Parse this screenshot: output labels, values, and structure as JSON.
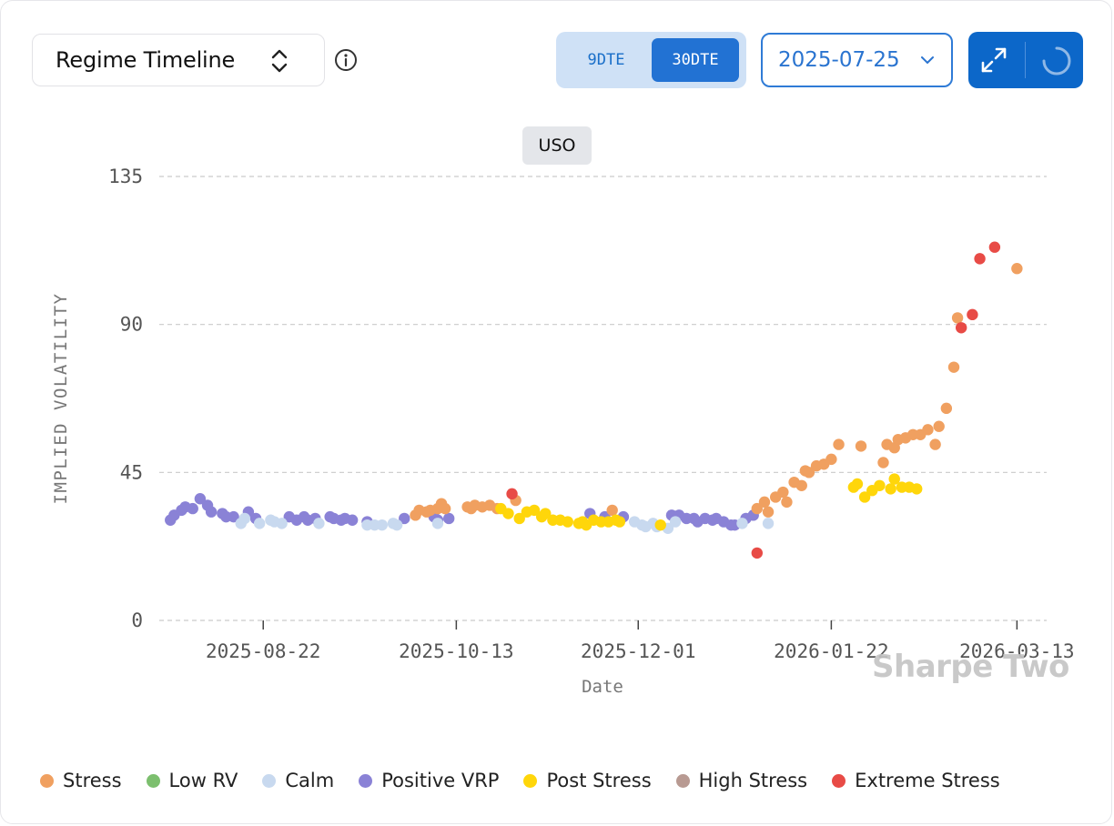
{
  "header": {
    "title": "Regime Timeline",
    "dte_options": [
      "9DTE",
      "30DTE"
    ],
    "selected_dte": "30DTE",
    "date_value": "2025-07-25",
    "icons": [
      "updown-chevron-icon",
      "info-icon",
      "chevron-down-icon",
      "expand-icon",
      "loading-spinner-icon"
    ]
  },
  "watermark": "Sharpe Two",
  "colors": {
    "Stress": "#f0a060",
    "Low RV": "#7cbf6e",
    "Calm": "#c8d9ef",
    "Positive VRP": "#8a82d6",
    "Post Stress": "#ffd60a",
    "High Stress": "#b89a92",
    "Extreme Stress": "#e84b46"
  },
  "chart_data": {
    "type": "scatter",
    "title": "USO",
    "xlabel": "Date",
    "ylabel": "IMPLIED VOLATILITY",
    "ylim": [
      0,
      135
    ],
    "yticks": [
      0,
      45,
      90,
      135
    ],
    "xlim": [
      "2025-07-25",
      "2026-03-21"
    ],
    "xticks": [
      "2025-08-22",
      "2025-10-13",
      "2025-12-01",
      "2026-01-22",
      "2026-03-13"
    ],
    "grid": "horizontal dashed",
    "legend": [
      "Stress",
      "Low RV",
      "Calm",
      "Positive VRP",
      "Post Stress",
      "High Stress",
      "Extreme Stress"
    ],
    "legend_position": "bottom",
    "series": [
      {
        "name": "Positive VRP",
        "points": [
          [
            "2025-07-28",
            30.5
          ],
          [
            "2025-07-29",
            32
          ],
          [
            "2025-07-31",
            33.5
          ],
          [
            "2025-08-01",
            34.5
          ],
          [
            "2025-08-03",
            34
          ],
          [
            "2025-08-05",
            37
          ],
          [
            "2025-08-07",
            35
          ],
          [
            "2025-08-08",
            33
          ],
          [
            "2025-08-11",
            32.5
          ],
          [
            "2025-08-12",
            31.5
          ],
          [
            "2025-08-14",
            31.5
          ],
          [
            "2025-08-18",
            33
          ],
          [
            "2025-08-20",
            31
          ],
          [
            "2025-08-29",
            31.5
          ],
          [
            "2025-08-31",
            30.5
          ],
          [
            "2025-09-02",
            31.5
          ],
          [
            "2025-09-03",
            30.5
          ],
          [
            "2025-09-05",
            31
          ],
          [
            "2025-09-09",
            31.5
          ],
          [
            "2025-09-10",
            31
          ],
          [
            "2025-09-12",
            30.5
          ],
          [
            "2025-09-13",
            31
          ],
          [
            "2025-09-15",
            30.5
          ],
          [
            "2025-09-19",
            30
          ],
          [
            "2025-09-29",
            31
          ],
          [
            "2025-10-07",
            31.5
          ],
          [
            "2025-10-08",
            30.5
          ],
          [
            "2025-10-11",
            31
          ],
          [
            "2025-11-18",
            32.5
          ],
          [
            "2025-11-22",
            31.5
          ],
          [
            "2025-11-27",
            31.5
          ],
          [
            "2025-12-10",
            32
          ],
          [
            "2025-12-12",
            32
          ],
          [
            "2025-12-14",
            31
          ],
          [
            "2025-12-16",
            31
          ],
          [
            "2025-12-17",
            30
          ],
          [
            "2025-12-19",
            31
          ],
          [
            "2025-12-21",
            30.5
          ],
          [
            "2025-12-22",
            31
          ],
          [
            "2025-12-24",
            30
          ],
          [
            "2025-12-26",
            29
          ],
          [
            "2025-12-27",
            29
          ],
          [
            "2025-12-30",
            31
          ],
          [
            "2026-01-01",
            32
          ]
        ]
      },
      {
        "name": "Calm",
        "points": [
          [
            "2025-08-16",
            29.5
          ],
          [
            "2025-08-17",
            31
          ],
          [
            "2025-08-21",
            29.5
          ],
          [
            "2025-08-24",
            30.5
          ],
          [
            "2025-08-25",
            30
          ],
          [
            "2025-08-27",
            29.5
          ],
          [
            "2025-09-06",
            29.5
          ],
          [
            "2025-09-19",
            29
          ],
          [
            "2025-09-21",
            29
          ],
          [
            "2025-09-23",
            29
          ],
          [
            "2025-09-26",
            29.5
          ],
          [
            "2025-09-27",
            29
          ],
          [
            "2025-10-08",
            29.5
          ],
          [
            "2025-11-30",
            30
          ],
          [
            "2025-12-02",
            29
          ],
          [
            "2025-12-03",
            28.5
          ],
          [
            "2025-12-05",
            29.5
          ],
          [
            "2025-12-06",
            28.5
          ],
          [
            "2025-12-09",
            28
          ],
          [
            "2025-12-11",
            30
          ],
          [
            "2025-12-29",
            29.5
          ],
          [
            "2026-01-05",
            29.5
          ]
        ]
      },
      {
        "name": "Stress",
        "points": [
          [
            "2025-10-02",
            32
          ],
          [
            "2025-10-03",
            33.5
          ],
          [
            "2025-10-05",
            33
          ],
          [
            "2025-10-06",
            33.5
          ],
          [
            "2025-10-08",
            34
          ],
          [
            "2025-10-09",
            35.5
          ],
          [
            "2025-10-10",
            34
          ],
          [
            "2025-10-16",
            34.5
          ],
          [
            "2025-10-17",
            34
          ],
          [
            "2025-10-18",
            35
          ],
          [
            "2025-10-20",
            34.5
          ],
          [
            "2025-10-22",
            35
          ],
          [
            "2025-10-24",
            34
          ],
          [
            "2025-10-29",
            36.5
          ],
          [
            "2025-11-24",
            33.5
          ],
          [
            "2026-01-02",
            34
          ],
          [
            "2026-01-04",
            36
          ],
          [
            "2026-01-05",
            33
          ],
          [
            "2026-01-07",
            37.5
          ],
          [
            "2026-01-09",
            39
          ],
          [
            "2026-01-10",
            36
          ],
          [
            "2026-01-12",
            42
          ],
          [
            "2026-01-14",
            41
          ],
          [
            "2026-01-15",
            45.5
          ],
          [
            "2026-01-16",
            45
          ],
          [
            "2026-01-18",
            47
          ],
          [
            "2026-01-20",
            47.5
          ],
          [
            "2026-01-22",
            49
          ],
          [
            "2026-01-24",
            53.5
          ],
          [
            "2026-01-30",
            53
          ],
          [
            "2026-02-05",
            48
          ],
          [
            "2026-02-06",
            53.5
          ],
          [
            "2026-02-08",
            52.5
          ],
          [
            "2026-02-09",
            55
          ],
          [
            "2026-02-11",
            55.5
          ],
          [
            "2026-02-13",
            56.5
          ],
          [
            "2026-02-15",
            56.5
          ],
          [
            "2026-02-17",
            58
          ],
          [
            "2026-02-19",
            53.5
          ],
          [
            "2026-02-20",
            59
          ],
          [
            "2026-02-22",
            64.5
          ],
          [
            "2026-02-24",
            77
          ],
          [
            "2026-02-25",
            92
          ],
          [
            "2026-03-13",
            107
          ]
        ]
      },
      {
        "name": "Post Stress",
        "points": [
          [
            "2025-10-25",
            34
          ],
          [
            "2025-10-27",
            32.5
          ],
          [
            "2025-10-30",
            31
          ],
          [
            "2025-11-01",
            33
          ],
          [
            "2025-11-03",
            33.5
          ],
          [
            "2025-11-05",
            31.5
          ],
          [
            "2025-11-06",
            32.5
          ],
          [
            "2025-11-08",
            30.5
          ],
          [
            "2025-11-10",
            30.5
          ],
          [
            "2025-11-12",
            30
          ],
          [
            "2025-11-15",
            29.5
          ],
          [
            "2025-11-16",
            30
          ],
          [
            "2025-11-17",
            29
          ],
          [
            "2025-11-19",
            30.5
          ],
          [
            "2025-11-21",
            30
          ],
          [
            "2025-11-23",
            30
          ],
          [
            "2025-11-25",
            30.5
          ],
          [
            "2025-11-26",
            30
          ],
          [
            "2025-12-07",
            29
          ],
          [
            "2026-01-28",
            40.5
          ],
          [
            "2026-01-29",
            41.5
          ],
          [
            "2026-01-31",
            37.5
          ],
          [
            "2026-02-02",
            39.5
          ],
          [
            "2026-02-04",
            41
          ],
          [
            "2026-02-07",
            40
          ],
          [
            "2026-02-08",
            43
          ],
          [
            "2026-02-10",
            40.5
          ],
          [
            "2026-02-12",
            40.5
          ],
          [
            "2026-02-14",
            40
          ]
        ]
      },
      {
        "name": "Extreme Stress",
        "points": [
          [
            "2025-10-28",
            38.5
          ],
          [
            "2026-01-02",
            20.5
          ],
          [
            "2026-02-26",
            89
          ],
          [
            "2026-03-01",
            93
          ],
          [
            "2026-03-03",
            110
          ],
          [
            "2026-03-07",
            113.5
          ]
        ]
      }
    ]
  }
}
